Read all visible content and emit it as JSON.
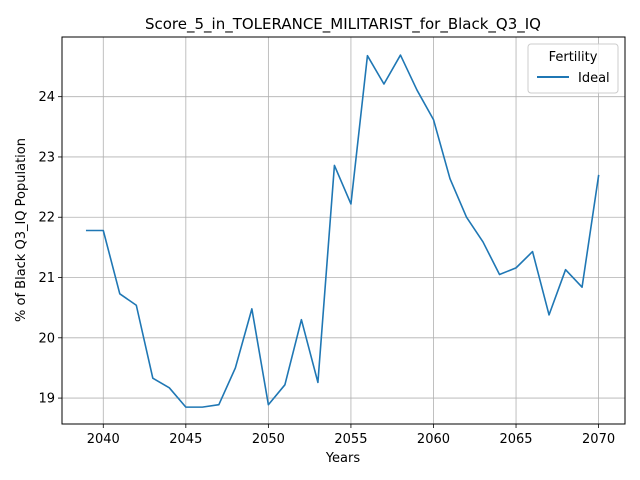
{
  "chart_data": {
    "type": "line",
    "title": "Score_5_in_TOLERANCE_MILITARIST_for_Black_Q3_IQ",
    "xlabel": "Years",
    "ylabel": "% of Black Q3_IQ Population",
    "xlim": [
      2037.5,
      2071.6
    ],
    "ylim": [
      18.57,
      24.99
    ],
    "xticks": [
      2040,
      2045,
      2050,
      2055,
      2060,
      2065,
      2070
    ],
    "yticks": [
      19,
      20,
      21,
      22,
      23,
      24
    ],
    "grid": true,
    "legend": {
      "title": "Fertility",
      "position": "top-right"
    },
    "series": [
      {
        "name": "Ideal",
        "color": "#1f77b4",
        "x": [
          2039,
          2040,
          2041,
          2042,
          2043,
          2044,
          2045,
          2046,
          2047,
          2048,
          2049,
          2050,
          2051,
          2052,
          2053,
          2054,
          2055,
          2056,
          2057,
          2058,
          2059,
          2060,
          2061,
          2062,
          2063,
          2064,
          2065,
          2066,
          2067,
          2068,
          2069,
          2070
        ],
        "values": [
          21.78,
          21.78,
          20.73,
          20.54,
          19.33,
          19.17,
          18.85,
          18.85,
          18.89,
          19.5,
          20.48,
          18.89,
          19.22,
          20.3,
          19.26,
          22.86,
          22.22,
          24.68,
          24.21,
          24.69,
          24.11,
          23.62,
          22.64,
          22.0,
          21.59,
          21.05,
          21.16,
          21.43,
          20.38,
          21.13,
          20.84,
          22.69
        ]
      }
    ]
  }
}
